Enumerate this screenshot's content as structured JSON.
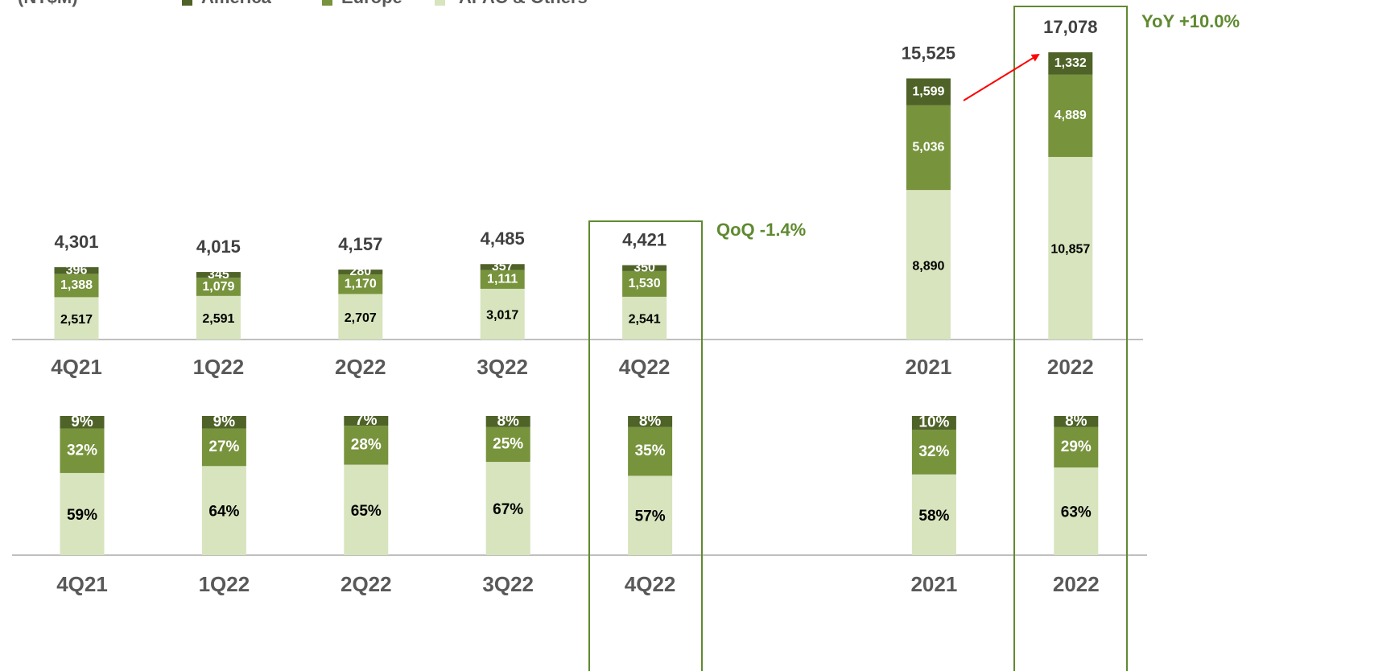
{
  "chart_data": [
    {
      "type": "stacked-bar",
      "unit": "(NT$M)",
      "categories": [
        "4Q21",
        "1Q22",
        "2Q22",
        "3Q22",
        "4Q22",
        null,
        "2021",
        "2022"
      ],
      "series": [
        {
          "name": "APAC & Others",
          "color": "#d7e4bd",
          "values": [
            2517,
            2591,
            2707,
            3017,
            2541,
            null,
            8890,
            10857
          ],
          "value_labels": [
            "2,517",
            "2,591",
            "2,707",
            "3,017",
            "2,541",
            null,
            "8,890",
            "10,857"
          ]
        },
        {
          "name": "Europe",
          "color": "#77933c",
          "values": [
            1388,
            1079,
            1170,
            1111,
            1530,
            null,
            5036,
            4889
          ],
          "value_labels": [
            "1,388",
            "1,079",
            "1,170",
            "1,111",
            "1,530",
            null,
            "5,036",
            "4,889"
          ]
        },
        {
          "name": "America",
          "color": "#4f6228",
          "values": [
            396,
            345,
            280,
            357,
            350,
            null,
            1599,
            1332
          ],
          "value_labels": [
            "396",
            "345",
            "280",
            "357",
            "350",
            null,
            "1,599",
            "1,332"
          ]
        }
      ],
      "totals": {
        "values": [
          4301,
          4015,
          4157,
          4485,
          4421,
          null,
          15525,
          17078
        ],
        "value_labels": [
          "4,301",
          "4,015",
          "4,157",
          "4,485",
          "4,421",
          null,
          "15,525",
          "17,078"
        ]
      },
      "annotations": [
        "QoQ -1.4%",
        "YoY +10.0%"
      ]
    },
    {
      "type": "stacked-bar-percent",
      "categories": [
        "4Q21",
        "1Q22",
        "2Q22",
        "3Q22",
        "4Q22",
        null,
        "2021",
        "2022"
      ],
      "series": [
        {
          "color": "#d7e4bd",
          "values": [
            59,
            64,
            65,
            67,
            57,
            null,
            58,
            63
          ],
          "value_labels": [
            "59%",
            "64%",
            "65%",
            "67%",
            "57%",
            null,
            "58%",
            "63%"
          ]
        },
        {
          "color": "#77933c",
          "values": [
            32,
            27,
            28,
            25,
            35,
            null,
            32,
            29
          ],
          "value_labels": [
            "32%",
            "27%",
            "28%",
            "25%",
            "35%",
            null,
            "32%",
            "29%"
          ]
        },
        {
          "color": "#4f6228",
          "values": [
            9,
            9,
            7,
            8,
            8,
            null,
            10,
            8
          ],
          "value_labels": [
            "9%",
            "9%",
            "7%",
            "8%",
            "8%",
            null,
            "10%",
            "8%"
          ]
        }
      ]
    }
  ]
}
